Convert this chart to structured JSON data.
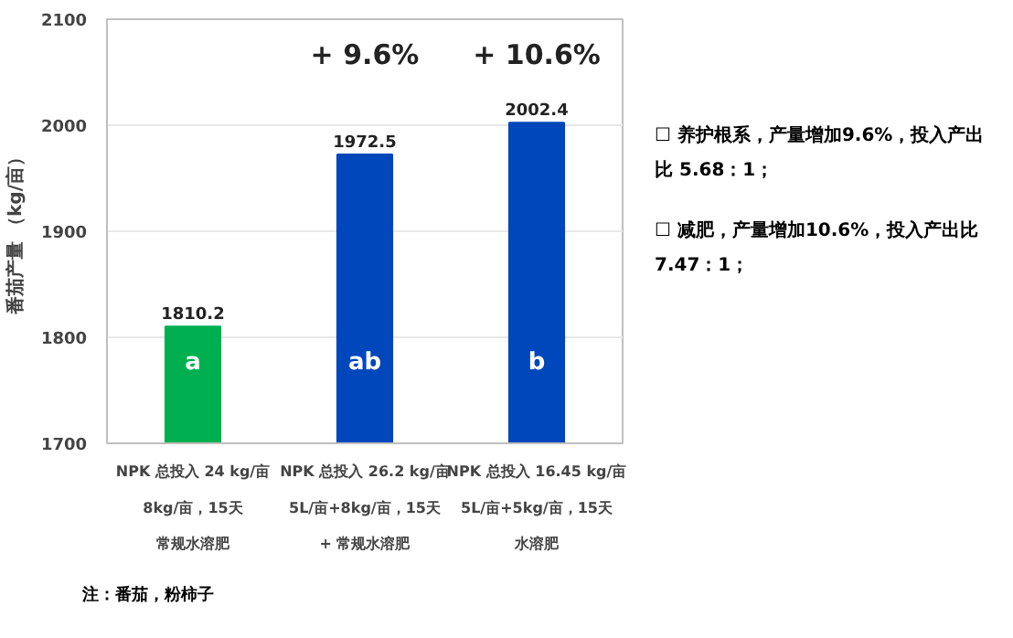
{
  "chart_data": {
    "type": "bar",
    "ylabel": "番茄产量 （kg/亩）",
    "categories": [
      "NPK 总投入 24 kg/亩8kg/亩，15天常规水溶肥",
      "NPK 总投入 26.2 kg/亩5L/亩+8kg/亩，15天+ 常规水溶肥",
      "NPK 总投入 16.45 kg/亩5L/亩+5kg/亩，15天水溶肥"
    ],
    "values": [
      1810.2,
      1972.5,
      2002.4
    ],
    "colors": [
      "#00b050",
      "#0047bb",
      "#0047bb"
    ],
    "data_labels": true,
    "ylim": [
      1700,
      2100
    ],
    "yticks": [
      1700,
      1800,
      1900,
      2000,
      2100
    ],
    "grid": "y",
    "annotations": [
      "a",
      "ab",
      "b",
      "+ 9.6%",
      "+ 10.6%",
      "☐ 养护根系，产量增加9.6%，投入产出比 5.68：1；",
      "☐ 减肥，产量增加10.6%，投入产出比 7.47：1；",
      "注：番茄，粉柿子"
    ]
  }
}
